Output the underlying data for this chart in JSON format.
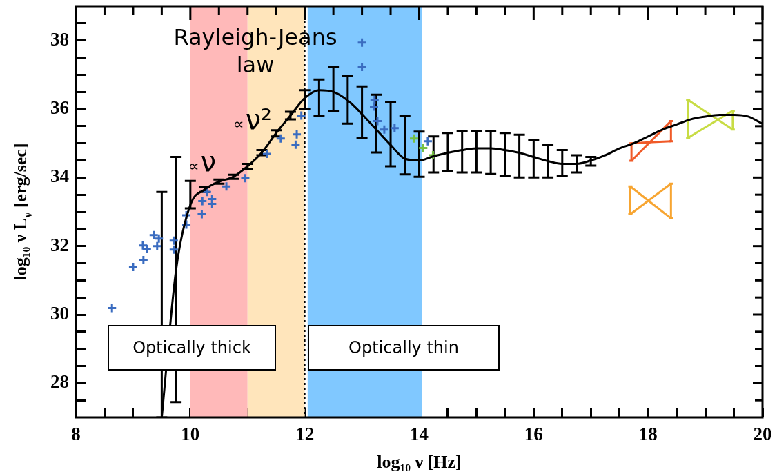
{
  "chart_data": {
    "type": "line",
    "xlabel": "log₁₀ ν [Hz]",
    "ylabel": "log₁₀ ν L$_{ν}$ [erg/sec]",
    "xlim": [
      8,
      20
    ],
    "ylim": [
      27,
      39
    ],
    "xticks": [
      8,
      {
        "value": 8.5,
        "label": null
      },
      {
        "value": 9,
        "label": null
      },
      {
        "value": 9.5,
        "label": null
      },
      10,
      {
        "value": 10.5,
        "label": null
      },
      {
        "value": 11,
        "label": null
      },
      {
        "value": 11.5,
        "label": null
      },
      12,
      {
        "value": 12.5,
        "label": null
      },
      {
        "value": 13,
        "label": null
      },
      {
        "value": 13.5,
        "label": null
      },
      14,
      {
        "value": 14.5,
        "label": null
      },
      {
        "value": 15,
        "label": null
      },
      {
        "value": 15.5,
        "label": null
      },
      16,
      {
        "value": 16.5,
        "label": null
      },
      {
        "value": 17,
        "label": null
      },
      {
        "value": 17.5,
        "label": null
      },
      18,
      {
        "value": 18.5,
        "label": null
      },
      {
        "value": 19,
        "label": null
      },
      {
        "value": 19.5,
        "label": null
      },
      20
    ],
    "yticks": [
      {
        "value": 27.5,
        "label": null
      },
      28,
      {
        "value": 28.5,
        "label": null
      },
      {
        "value": 29,
        "label": null
      },
      {
        "value": 29.5,
        "label": null
      },
      30,
      {
        "value": 30.5,
        "label": null
      },
      {
        "value": 31,
        "label": null
      },
      {
        "value": 31.5,
        "label": null
      },
      32,
      {
        "value": 32.5,
        "label": null
      },
      {
        "value": 33,
        "label": null
      },
      {
        "value": 33.5,
        "label": null
      },
      34,
      {
        "value": 34.5,
        "label": null
      },
      {
        "value": 35,
        "label": null
      },
      {
        "value": 35.5,
        "label": null
      },
      36,
      {
        "value": 36.5,
        "label": null
      },
      {
        "value": 37,
        "label": null
      },
      {
        "value": 37.5,
        "label": null
      },
      38,
      {
        "value": 38.5,
        "label": null
      }
    ],
    "bands": [
      {
        "axis": "x",
        "from": 10,
        "to": 11,
        "color": "#ffb9b9"
      },
      {
        "axis": "x",
        "from": 11,
        "to": 12,
        "color": "#ffe5bb"
      },
      {
        "axis": "x",
        "from": 12.05,
        "to": 14.05,
        "color": "#80c8ff"
      }
    ],
    "ref_lines": [
      {
        "axis": "x",
        "value": 12,
        "color": "#000000",
        "line_style": "dotted"
      }
    ],
    "annotations": [
      "Rayleigh-Jeans law",
      "∝ν²",
      "∝ν",
      "Optically thick",
      "Optically thin"
    ],
    "series": [
      {
        "type": "line",
        "color": "#000000",
        "marker": "none",
        "x": [
          9.5,
          9.75,
          10,
          10.25,
          10.5,
          10.75,
          11,
          11.25,
          11.5,
          11.75,
          12,
          12.25,
          12.5,
          12.75,
          13,
          13.25,
          13.5,
          13.75,
          14,
          14.25,
          14.5,
          14.75,
          15,
          15.25,
          15.5,
          15.75,
          16,
          16.25,
          16.5,
          16.75,
          17,
          17.25,
          17.5,
          17.75,
          18,
          18.25,
          18.5,
          18.75,
          19,
          19.25,
          19.5,
          19.75,
          20
        ],
        "values": [
          27.0,
          31.3,
          33.2,
          33.65,
          33.88,
          34.02,
          34.33,
          34.73,
          35.3,
          35.81,
          36.32,
          36.55,
          36.5,
          36.25,
          35.85,
          35.4,
          34.95,
          34.55,
          34.5,
          34.62,
          34.72,
          34.8,
          34.85,
          34.85,
          34.8,
          34.72,
          34.6,
          34.48,
          34.4,
          34.4,
          34.5,
          34.65,
          34.85,
          35.0,
          35.2,
          35.4,
          35.55,
          35.7,
          35.78,
          35.83,
          35.83,
          35.78,
          35.57
        ],
        "errors": [
          [
            27,
            33.58
          ],
          [
            27.45,
            34.6
          ],
          [
            33.1,
            33.9
          ],
          [
            33.58,
            33.72
          ],
          [
            33.82,
            33.94
          ],
          [
            33.96,
            34.08
          ],
          [
            34.25,
            34.4
          ],
          [
            34.65,
            34.8
          ],
          [
            35.2,
            35.38
          ],
          [
            35.7,
            35.92
          ],
          [
            36.0,
            36.55
          ],
          [
            35.8,
            36.86
          ],
          [
            35.95,
            37.23
          ],
          [
            35.57,
            36.97
          ],
          [
            35.16,
            36.66
          ],
          [
            34.73,
            36.42
          ],
          [
            34.33,
            36.21
          ],
          [
            34.09,
            35.8
          ],
          [
            34.02,
            35.34
          ],
          [
            34.15,
            35.2
          ],
          [
            34.2,
            35.3
          ],
          [
            34.15,
            35.35
          ],
          [
            34.15,
            35.35
          ],
          [
            34.1,
            35.35
          ],
          [
            34.05,
            35.3
          ],
          [
            34.0,
            35.25
          ],
          [
            34.0,
            35.1
          ],
          [
            34.0,
            34.95
          ],
          [
            34.05,
            34.8
          ],
          [
            34.15,
            34.65
          ],
          [
            34.35,
            34.6
          ],
          null,
          null,
          null,
          null,
          null,
          null,
          null,
          null,
          null,
          null,
          null,
          null
        ]
      },
      {
        "type": "scatter",
        "color": "#3a6cc0",
        "marker": "cross",
        "x": [
          8.63,
          9.0,
          9.18,
          9.17,
          9.24,
          9.36,
          9.45,
          9.42,
          9.71,
          9.71,
          9.93,
          9.93,
          10.2,
          10.21,
          10.38,
          10.38,
          10.29,
          10.63,
          10.96,
          11.34,
          11.58,
          11.86,
          11.84,
          11.94,
          13.0,
          13.0,
          13.22,
          13.21,
          13.27,
          13.39,
          13.57,
          14.15
        ],
        "values": [
          30.19,
          31.39,
          31.59,
          32.02,
          31.92,
          32.32,
          32.22,
          32.0,
          32.16,
          31.9,
          32.9,
          32.63,
          32.93,
          33.31,
          33.37,
          33.23,
          33.58,
          33.74,
          33.98,
          34.69,
          35.14,
          35.26,
          34.96,
          35.81,
          37.94,
          37.23,
          36.26,
          36.07,
          35.65,
          35.4,
          35.44,
          35.06
        ]
      },
      {
        "type": "scatter",
        "color": "#76c043",
        "marker": "cross",
        "x": [
          13.91,
          14.07,
          14.24
        ],
        "values": [
          35.14,
          34.86,
          34.65
        ]
      },
      {
        "type": "line",
        "color": "#f05a28",
        "marker": "none",
        "x": [
          17.71,
          18.4
        ],
        "values": [
          35.0,
          35.06
        ],
        "errors": [
          [
            34.49,
            35.0
          ],
          [
            35.06,
            35.65
          ]
        ]
      },
      {
        "type": "line",
        "color": "#f05a28",
        "marker": "none",
        "x": [
          17.71,
          18.4
        ],
        "values": [
          34.49,
          35.65
        ]
      },
      {
        "type": "line",
        "color": "#f7a531",
        "marker": "none",
        "x": [
          17.69,
          18.4
        ],
        "values": [
          33.74,
          32.81
        ],
        "errors": [
          [
            32.93,
            33.74
          ],
          [
            32.81,
            33.82
          ]
        ]
      },
      {
        "type": "line",
        "color": "#f7a531",
        "marker": "none",
        "x": [
          17.69,
          18.4
        ],
        "values": [
          32.93,
          33.82
        ]
      },
      {
        "type": "line",
        "color": "#c8dc44",
        "marker": "none",
        "x": [
          18.7,
          19.48
        ],
        "values": [
          36.26,
          35.4
        ],
        "errors": [
          [
            35.16,
            36.26
          ],
          [
            35.4,
            35.95
          ]
        ]
      },
      {
        "type": "line",
        "color": "#c8dc44",
        "marker": "none",
        "x": [
          18.7,
          19.48
        ],
        "values": [
          35.16,
          35.95
        ]
      }
    ]
  }
}
